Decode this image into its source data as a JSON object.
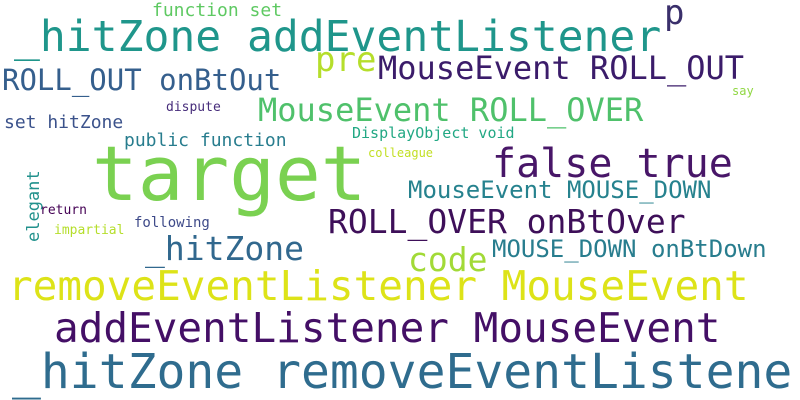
{
  "words": [
    {
      "text": "target",
      "color": "#7ad151"
    },
    {
      "text": "_hitZone addEventListener",
      "color": "#1f968b"
    },
    {
      "text": "_hitZone removeEventListener",
      "color": "#2f6c8e"
    },
    {
      "text": "removeEventListener MouseEvent",
      "color": "#dde318"
    },
    {
      "text": "addEventListener MouseEvent",
      "color": "#440f66"
    },
    {
      "text": "MouseEvent ROLL_OUT",
      "color": "#3b1c6a"
    },
    {
      "text": "MouseEvent ROLL_OVER",
      "color": "#4fc16b"
    },
    {
      "text": "ROLL_OUT onBtOut",
      "color": "#355f8d"
    },
    {
      "text": "false true",
      "color": "#481668"
    },
    {
      "text": "ROLL_OVER onBtOver",
      "color": "#3e0f59"
    },
    {
      "text": "MouseEvent MOUSE_DOWN",
      "color": "#26828e"
    },
    {
      "text": "MOUSE_DOWN onBtDown",
      "color": "#287d8e"
    },
    {
      "text": "_hitZone",
      "color": "#31688e"
    },
    {
      "text": "code",
      "color": "#a2da37"
    },
    {
      "text": "pre",
      "color": "#b5de2b"
    },
    {
      "text": "p",
      "color": "#3a2f6b"
    },
    {
      "text": "function set",
      "color": "#5ec962"
    },
    {
      "text": "set hitZone",
      "color": "#3b528b"
    },
    {
      "text": "public function",
      "color": "#287d8e"
    },
    {
      "text": "DisplayObject void",
      "color": "#22a884"
    },
    {
      "text": "colleague",
      "color": "#c2df23"
    },
    {
      "text": "dispute",
      "color": "#472d7b"
    },
    {
      "text": "say",
      "color": "#90d743"
    },
    {
      "text": "elegant",
      "color": "#21918c"
    },
    {
      "text": "return",
      "color": "#440154"
    },
    {
      "text": "impartial",
      "color": "#b5de2b"
    },
    {
      "text": "following",
      "color": "#3e4a89"
    }
  ]
}
